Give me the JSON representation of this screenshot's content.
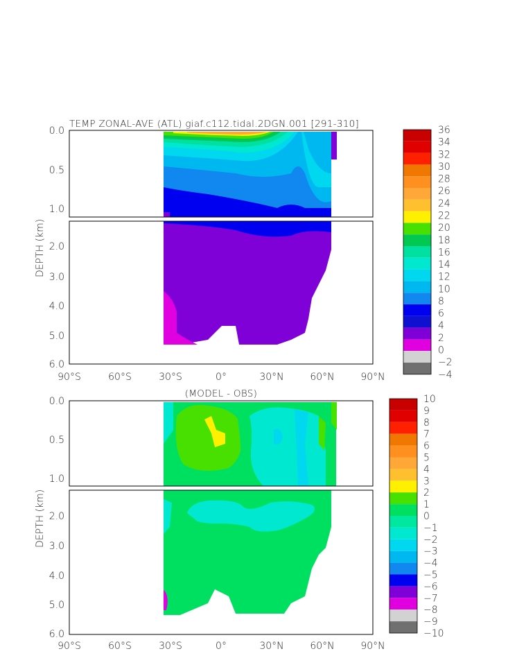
{
  "figure": {
    "title": "TEMP ZONAL-AVE (ATL) giaf.c112.tidal.2DGN.001 [291-310]",
    "subtitle": "(MODEL - OBS)",
    "ylabel": "DEPTH (km)",
    "xticks": [
      "90°S",
      "60°S",
      "30°S",
      "0°",
      "30°N",
      "60°N",
      "90°N"
    ],
    "yticks_upper": [
      "0.0",
      "0.5",
      "1.0"
    ],
    "yticks_lower": [
      "2.0",
      "3.0",
      "4.0",
      "5.0",
      "6.0"
    ]
  },
  "chart_data": [
    {
      "type": "heatmap",
      "title": "TEMP ZONAL-AVE (ATL) giaf.c112.tidal.2DGN.001 [291-310]",
      "ylabel": "DEPTH (km)",
      "xlim": [
        -90,
        90
      ],
      "ylim": [
        0,
        6
      ],
      "colorbar": {
        "labels": [
          "36",
          "34",
          "32",
          "30",
          "28",
          "26",
          "24",
          "22",
          "20",
          "18",
          "16",
          "14",
          "12",
          "10",
          "8",
          "6",
          "4",
          "2",
          "0",
          "-2",
          "-4"
        ],
        "colors": [
          "#c80000",
          "#e00000",
          "#ff2000",
          "#f07800",
          "#ff9020",
          "#ffa838",
          "#ffc030",
          "#fff000",
          "#48e000",
          "#00c850",
          "#00e0a0",
          "#00e8d0",
          "#00d8f0",
          "#00b8f0",
          "#1088f0",
          "#0000f0",
          "#1010d0",
          "#8000d8",
          "#e000e0",
          "#d2d2d2",
          "#707070"
        ]
      },
      "latitude_extent": [
        -34,
        66
      ],
      "upper_depth_km": [
        0,
        1.1
      ],
      "lower_depth_km": [
        1.1,
        6.0
      ]
    },
    {
      "type": "heatmap",
      "title": "(MODEL - OBS)",
      "ylabel": "DEPTH (km)",
      "xlim": [
        -90,
        90
      ],
      "ylim": [
        0,
        6
      ],
      "colorbar": {
        "labels": [
          "10",
          "9",
          "8",
          "7",
          "6",
          "5",
          "4",
          "3",
          "2",
          "1",
          "0",
          "-1",
          "-2",
          "-3",
          "-4",
          "-5",
          "-6",
          "-7",
          "-8",
          "-9",
          "-10"
        ],
        "colors": [
          "#c80000",
          "#e00000",
          "#ff2000",
          "#f07800",
          "#ff9020",
          "#ffa838",
          "#ffc030",
          "#fff000",
          "#48e000",
          "#00e060",
          "#00e8a0",
          "#00e8d0",
          "#00d8f0",
          "#00b8f0",
          "#1088f0",
          "#0000f0",
          "#8000d8",
          "#e000e0",
          "#d2d2d2",
          "#707070"
        ]
      }
    }
  ]
}
